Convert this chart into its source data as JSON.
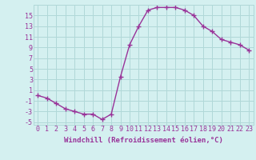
{
  "x": [
    0,
    1,
    2,
    3,
    4,
    5,
    6,
    7,
    8,
    9,
    10,
    11,
    12,
    13,
    14,
    15,
    16,
    17,
    18,
    19,
    20,
    21,
    22,
    23
  ],
  "y": [
    0,
    -0.5,
    -1.5,
    -2.5,
    -3,
    -3.5,
    -3.5,
    -4.5,
    -3.5,
    3.5,
    9.5,
    13,
    16,
    16.5,
    16.5,
    16.5,
    16,
    15,
    13,
    12,
    10.5,
    10,
    9.5,
    8.5
  ],
  "line_color": "#993399",
  "marker": "+",
  "marker_size": 4,
  "background_color": "#d4f0f0",
  "grid_color": "#b0d8d8",
  "xlabel": "Windchill (Refroidissement éolien,°C)",
  "xlim": [
    -0.5,
    23.5
  ],
  "ylim": [
    -5.5,
    17.0
  ],
  "xticks": [
    0,
    1,
    2,
    3,
    4,
    5,
    6,
    7,
    8,
    9,
    10,
    11,
    12,
    13,
    14,
    15,
    16,
    17,
    18,
    19,
    20,
    21,
    22,
    23
  ],
  "yticks": [
    -5,
    -3,
    -1,
    1,
    3,
    5,
    7,
    9,
    11,
    13,
    15
  ],
  "label_fontsize": 6.5,
  "tick_fontsize": 6.0
}
